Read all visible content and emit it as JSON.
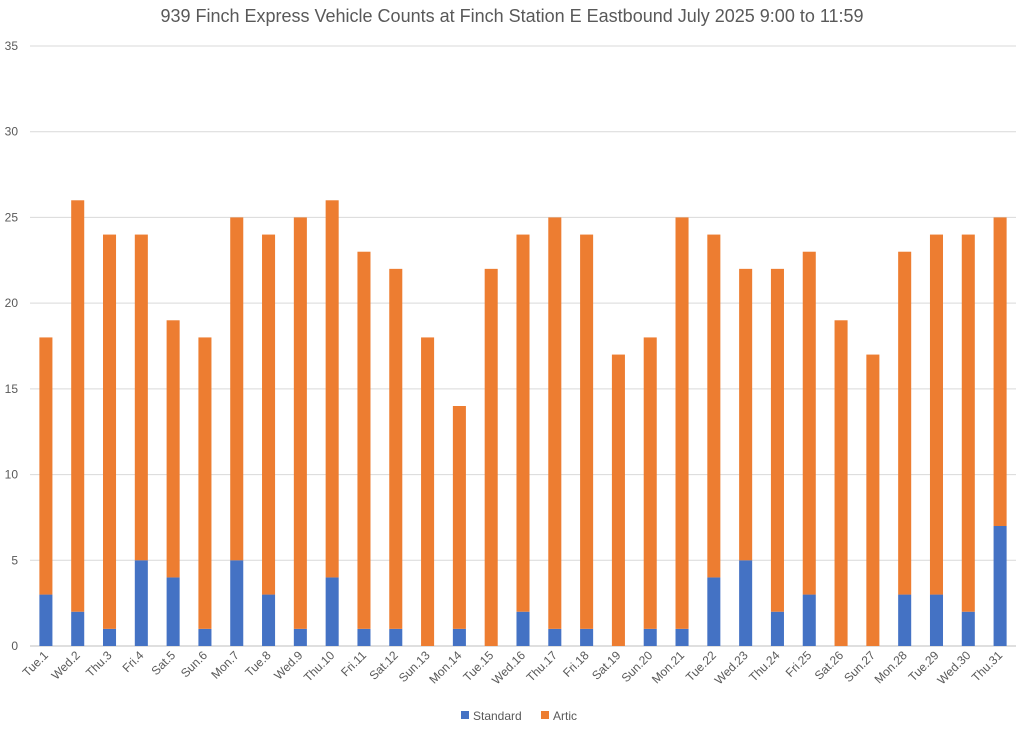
{
  "chart_data": {
    "type": "bar",
    "stacked": true,
    "title": "939 Finch Express Vehicle Counts at Finch Station E Eastbound July 2025  9:00 to 11:59",
    "xlabel": "",
    "ylabel": "",
    "ylim": [
      0,
      35
    ],
    "yticks": [
      0,
      5,
      10,
      15,
      20,
      25,
      30,
      35
    ],
    "grid": true,
    "legend_position": "bottom",
    "categories": [
      "Tue.1",
      "Wed.2",
      "Thu.3",
      "Fri.4",
      "Sat.5",
      "Sun.6",
      "Mon.7",
      "Tue.8",
      "Wed.9",
      "Thu.10",
      "Fri.11",
      "Sat.12",
      "Sun.13",
      "Mon.14",
      "Tue.15",
      "Wed.16",
      "Thu.17",
      "Fri.18",
      "Sat.19",
      "Sun.20",
      "Mon.21",
      "Tue.22",
      "Wed.23",
      "Thu.24",
      "Fri.25",
      "Sat.26",
      "Sun.27",
      "Mon.28",
      "Tue.29",
      "Wed.30",
      "Thu.31"
    ],
    "series": [
      {
        "name": "Standard",
        "color": "#4472C4",
        "values": [
          3,
          2,
          1,
          5,
          4,
          1,
          5,
          3,
          1,
          4,
          1,
          1,
          0,
          1,
          0,
          2,
          1,
          1,
          0,
          1,
          1,
          4,
          5,
          2,
          3,
          0,
          0,
          3,
          3,
          2,
          7
        ]
      },
      {
        "name": "Artic",
        "color": "#ED7D31",
        "values": [
          15,
          24,
          23,
          19,
          15,
          17,
          20,
          21,
          24,
          22,
          22,
          21,
          18,
          13,
          22,
          22,
          24,
          23,
          17,
          17,
          24,
          20,
          17,
          20,
          20,
          19,
          17,
          20,
          21,
          22,
          18
        ]
      }
    ]
  }
}
